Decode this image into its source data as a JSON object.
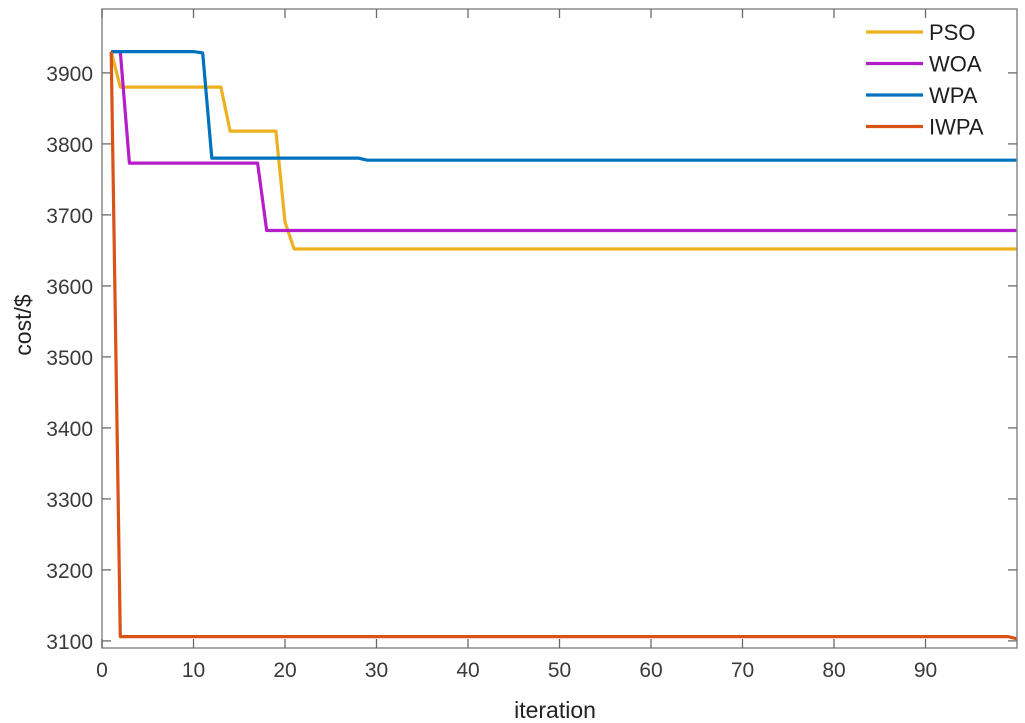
{
  "chart_data": {
    "type": "line",
    "title": "",
    "xlabel": "iteration",
    "ylabel": "cost/$",
    "xlim": [
      0,
      100
    ],
    "ylim": [
      3090,
      3990
    ],
    "xticks": [
      0,
      10,
      20,
      30,
      40,
      50,
      60,
      70,
      80,
      90
    ],
    "yticks": [
      3100,
      3200,
      3300,
      3400,
      3500,
      3600,
      3700,
      3800,
      3900
    ],
    "grid": false,
    "legend_position": "upper right",
    "series": [
      {
        "name": "PSO",
        "color": "#EDB120",
        "x": [
          1,
          2,
          13,
          14,
          19,
          20,
          21,
          100
        ],
        "y": [
          3930,
          3880,
          3880,
          3818,
          3818,
          3690,
          3652,
          3652
        ]
      },
      {
        "name": "WOA",
        "color": "#B41EC8",
        "x": [
          1,
          2,
          3,
          17,
          18,
          100
        ],
        "y": [
          3930,
          3930,
          3773,
          3773,
          3678,
          3678
        ]
      },
      {
        "name": "WPA",
        "color": "#0072BD",
        "x": [
          1,
          10,
          11,
          12,
          28,
          29,
          100
        ],
        "y": [
          3930,
          3930,
          3928,
          3780,
          3780,
          3777,
          3777
        ]
      },
      {
        "name": "IWPA",
        "color": "#D95319",
        "x": [
          1,
          2,
          99,
          100
        ],
        "y": [
          3930,
          3106,
          3106,
          3103
        ]
      }
    ]
  },
  "axes": {
    "x_tick_labels": [
      "0",
      "10",
      "20",
      "30",
      "40",
      "50",
      "60",
      "70",
      "80",
      "90"
    ],
    "y_tick_labels": [
      "3100",
      "3200",
      "3300",
      "3400",
      "3500",
      "3600",
      "3700",
      "3800",
      "3900"
    ],
    "xlabel": "iteration",
    "ylabel": "cost/$"
  },
  "legend": {
    "items": [
      {
        "label": "PSO",
        "color": "#EDB120"
      },
      {
        "label": "WOA",
        "color": "#B41EC8"
      },
      {
        "label": "WPA",
        "color": "#0072BD"
      },
      {
        "label": "IWPA",
        "color": "#D95319"
      }
    ]
  }
}
